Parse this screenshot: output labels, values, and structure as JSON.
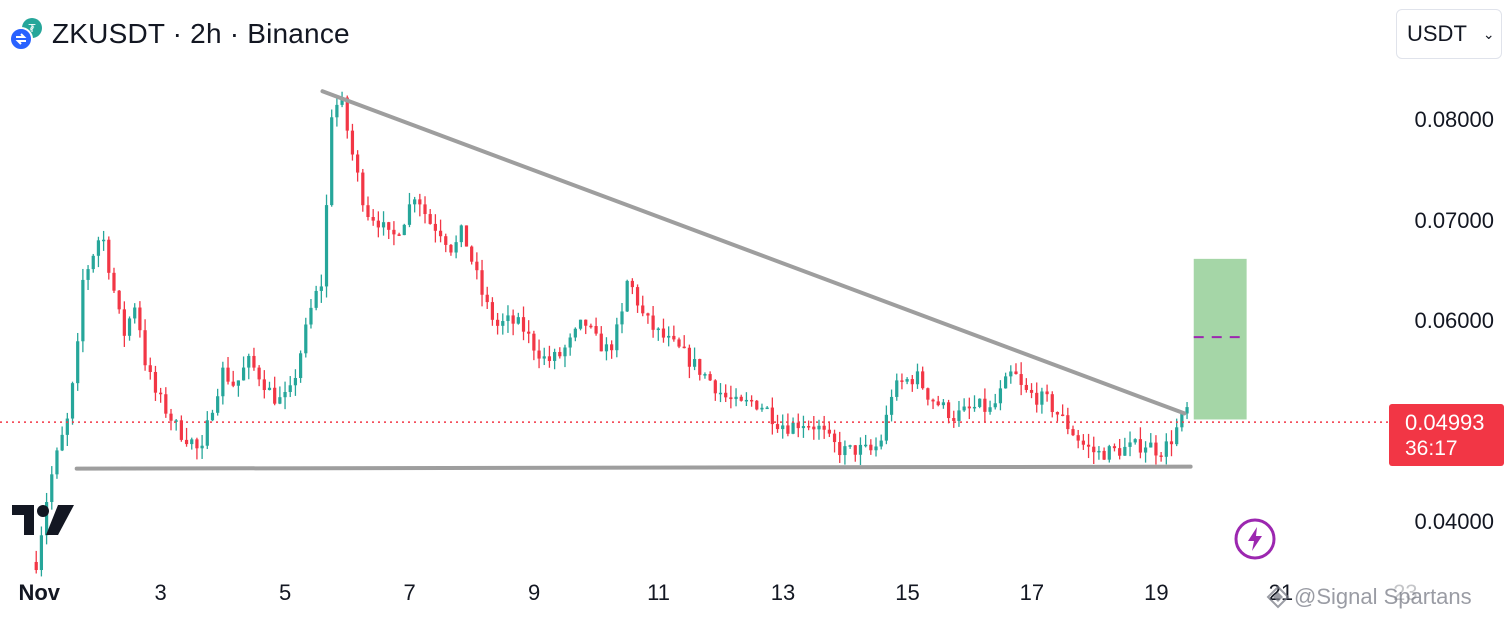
{
  "header": {
    "title": "ZKUSDT · 2h · Binance",
    "currency_select": "USDT"
  },
  "price_tag": {
    "price": "0.04993",
    "countdown": "36:17"
  },
  "watermark": "@Signal Spartans",
  "colors": {
    "up": "#26a69a",
    "down": "#f23645",
    "trendline": "#9e9e9e",
    "target_zone": "#a5d6a7",
    "dotted_line": "#f23645"
  },
  "icons": {
    "symbol": "zksync-binance-icon",
    "logo": "tradingview-logo",
    "bolt": "lightning-icon"
  },
  "chart_data": {
    "type": "candlestick",
    "title": "ZKUSDT · 2h · Binance",
    "x_unit": "day of November",
    "x_ticks": [
      {
        "x": 1,
        "label": "Nov"
      },
      {
        "x": 3,
        "label": "3"
      },
      {
        "x": 5,
        "label": "5"
      },
      {
        "x": 7,
        "label": "7"
      },
      {
        "x": 9,
        "label": "9"
      },
      {
        "x": 11,
        "label": "11"
      },
      {
        "x": 13,
        "label": "13"
      },
      {
        "x": 15,
        "label": "15"
      },
      {
        "x": 17,
        "label": "17"
      },
      {
        "x": 19,
        "label": "19"
      },
      {
        "x": 21,
        "label": "21"
      },
      {
        "x": 23,
        "label": "23"
      }
    ],
    "y_ticks": [
      0.08,
      0.07,
      0.06,
      0.04
    ],
    "y_tick_labels": [
      "0.08000",
      "0.07000",
      "0.06000",
      "0.04000"
    ],
    "ylim": [
      0.0355,
      0.089
    ],
    "xlim": [
      0.9,
      24.2
    ],
    "last_price": 0.04993,
    "path": [
      [
        1.0,
        0.036
      ],
      [
        1.2,
        0.0435
      ],
      [
        1.35,
        0.047
      ],
      [
        1.5,
        0.05
      ],
      [
        1.65,
        0.056
      ],
      [
        1.75,
        0.064
      ],
      [
        1.9,
        0.0665
      ],
      [
        2.05,
        0.069
      ],
      [
        2.2,
        0.0645
      ],
      [
        2.4,
        0.0585
      ],
      [
        2.6,
        0.062
      ],
      [
        2.75,
        0.056
      ],
      [
        2.9,
        0.053
      ],
      [
        3.1,
        0.051
      ],
      [
        3.3,
        0.049
      ],
      [
        3.5,
        0.048
      ],
      [
        3.65,
        0.0465
      ],
      [
        3.8,
        0.051
      ],
      [
        4.0,
        0.055
      ],
      [
        4.2,
        0.0535
      ],
      [
        4.4,
        0.056
      ],
      [
        4.6,
        0.0545
      ],
      [
        4.8,
        0.0525
      ],
      [
        4.95,
        0.052
      ],
      [
        5.1,
        0.053
      ],
      [
        5.25,
        0.057
      ],
      [
        5.45,
        0.062
      ],
      [
        5.6,
        0.064
      ],
      [
        5.75,
        0.081
      ],
      [
        5.9,
        0.082
      ],
      [
        6.1,
        0.076
      ],
      [
        6.3,
        0.071
      ],
      [
        6.5,
        0.07
      ],
      [
        6.7,
        0.068
      ],
      [
        6.9,
        0.07
      ],
      [
        7.1,
        0.073
      ],
      [
        7.3,
        0.07
      ],
      [
        7.5,
        0.069
      ],
      [
        7.7,
        0.067
      ],
      [
        7.85,
        0.069
      ],
      [
        8.0,
        0.066
      ],
      [
        8.2,
        0.062
      ],
      [
        8.4,
        0.0595
      ],
      [
        8.6,
        0.06
      ],
      [
        8.8,
        0.0595
      ],
      [
        9.0,
        0.0575
      ],
      [
        9.2,
        0.056
      ],
      [
        9.4,
        0.0565
      ],
      [
        9.6,
        0.058
      ],
      [
        9.8,
        0.06
      ],
      [
        10.0,
        0.058
      ],
      [
        10.2,
        0.057
      ],
      [
        10.4,
        0.06
      ],
      [
        10.5,
        0.064
      ],
      [
        10.6,
        0.063
      ],
      [
        10.75,
        0.0605
      ],
      [
        10.95,
        0.059
      ],
      [
        11.15,
        0.058
      ],
      [
        11.35,
        0.057
      ],
      [
        11.6,
        0.0555
      ],
      [
        11.85,
        0.054
      ],
      [
        12.05,
        0.0525
      ],
      [
        12.3,
        0.0515
      ],
      [
        12.5,
        0.052
      ],
      [
        12.7,
        0.0515
      ],
      [
        12.9,
        0.05
      ],
      [
        13.1,
        0.0495
      ],
      [
        13.3,
        0.05
      ],
      [
        13.55,
        0.0495
      ],
      [
        13.75,
        0.048
      ],
      [
        13.95,
        0.047
      ],
      [
        14.2,
        0.0472
      ],
      [
        14.45,
        0.047
      ],
      [
        14.6,
        0.0485
      ],
      [
        14.75,
        0.053
      ],
      [
        14.95,
        0.054
      ],
      [
        15.15,
        0.0545
      ],
      [
        15.35,
        0.0525
      ],
      [
        15.55,
        0.0515
      ],
      [
        15.75,
        0.0505
      ],
      [
        15.95,
        0.051
      ],
      [
        16.15,
        0.0515
      ],
      [
        16.35,
        0.051
      ],
      [
        16.55,
        0.0535
      ],
      [
        16.7,
        0.055
      ],
      [
        16.85,
        0.053
      ],
      [
        17.05,
        0.0525
      ],
      [
        17.25,
        0.052
      ],
      [
        17.45,
        0.0505
      ],
      [
        17.65,
        0.049
      ],
      [
        17.85,
        0.0475
      ],
      [
        18.05,
        0.0468
      ],
      [
        18.25,
        0.047
      ],
      [
        18.45,
        0.0472
      ],
      [
        18.65,
        0.0475
      ],
      [
        18.85,
        0.0478
      ],
      [
        19.05,
        0.047
      ],
      [
        19.2,
        0.0478
      ],
      [
        19.35,
        0.0495
      ],
      [
        19.5,
        0.0512
      ]
    ],
    "candle_step_days": 0.0833,
    "annotations": [
      {
        "type": "trendline",
        "name": "descending resistance",
        "from": [
          5.6,
          0.0829
        ],
        "to": [
          19.45,
          0.0508
        ]
      },
      {
        "type": "trendline",
        "name": "flat support",
        "from": [
          1.65,
          0.0453
        ],
        "to": [
          19.55,
          0.0455
        ]
      },
      {
        "type": "target-zone",
        "x_range": [
          19.6,
          20.45
        ],
        "y_range": [
          0.0502,
          0.0662
        ],
        "midline": 0.0584
      },
      {
        "type": "price-line",
        "y": 0.04993,
        "style": "dotted"
      }
    ]
  }
}
